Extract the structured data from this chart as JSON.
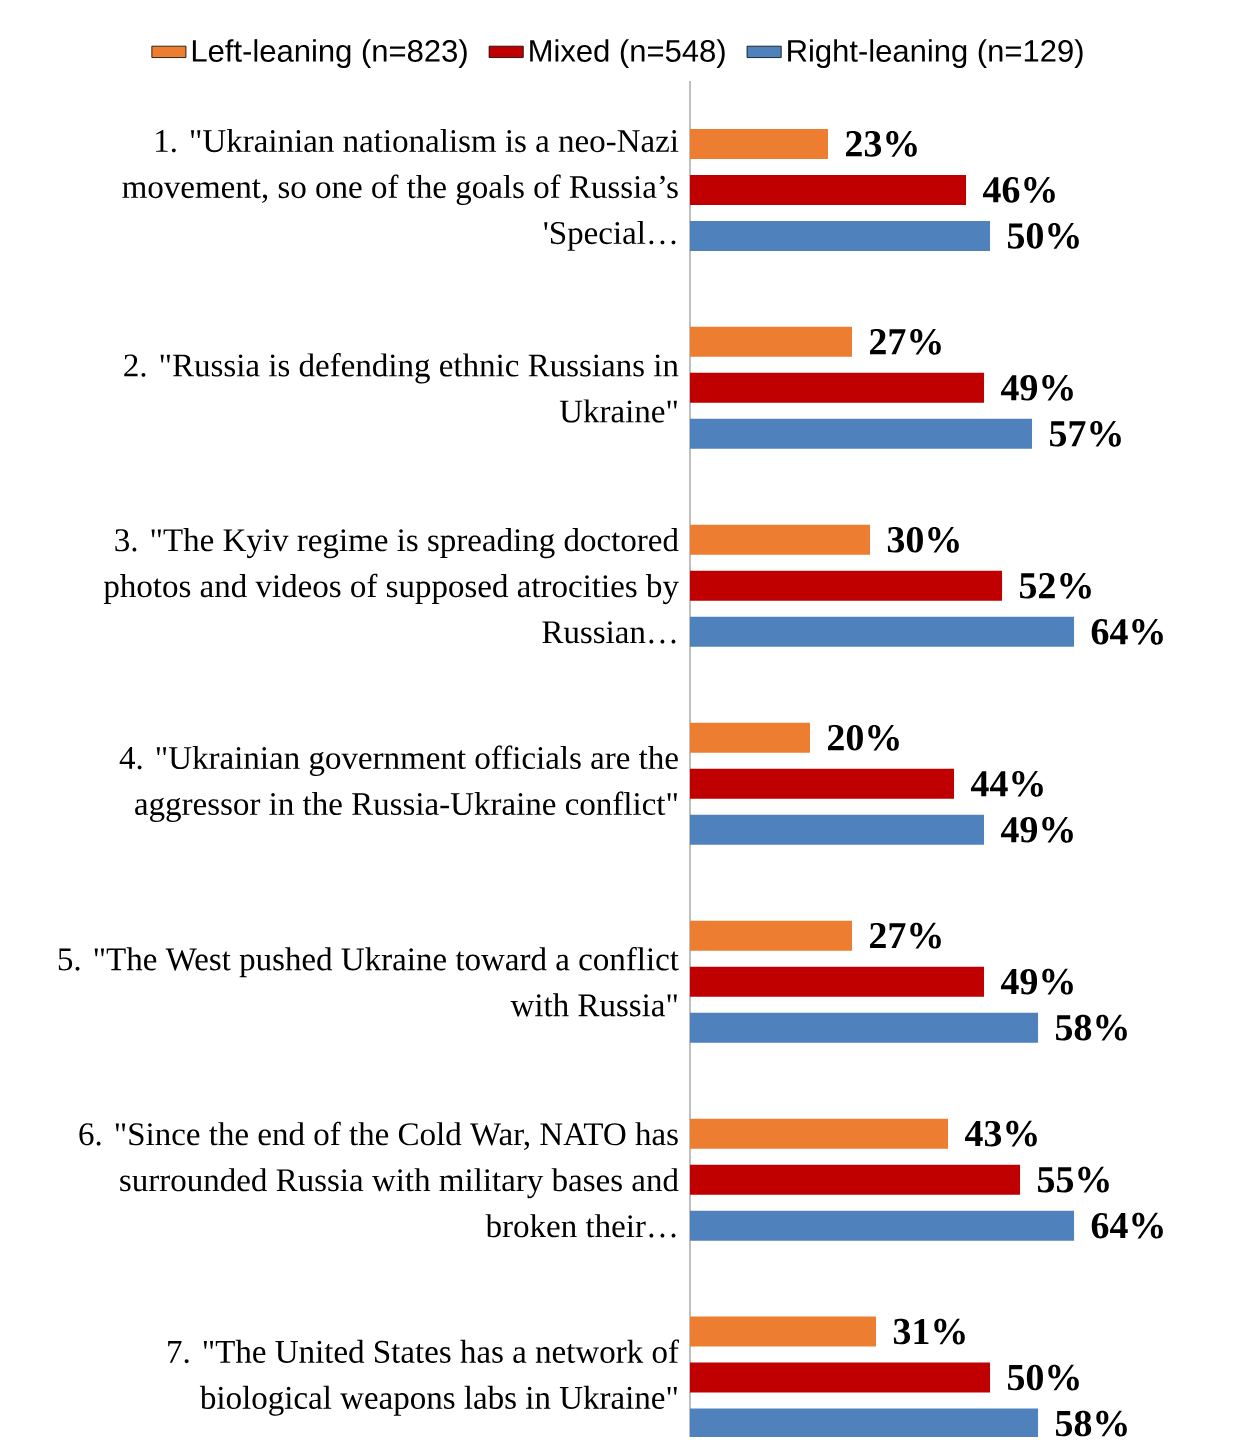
{
  "chart_data": {
    "type": "bar",
    "orientation": "horizontal",
    "legend": "top",
    "categories": [
      "1. \"Ukrainian nationalism is a neo-Nazi movement, so one of the goals of Russia’s 'Special…",
      "2. \"Russia is defending ethnic Russians in Ukraine\"",
      "3. \"The Kyiv regime is spreading doctored photos and videos of supposed atrocities by Russian…",
      "4. \"Ukrainian government officials are the aggressor in the Russia-Ukraine conflict\"",
      "5. \"The West pushed Ukraine toward a conflict with Russia\"",
      "6. \"Since the end of the Cold War, NATO has surrounded Russia with military bases and broken their…",
      "7. \"The United States has a network of biological weapons labs in Ukraine\""
    ],
    "series": [
      {
        "name": "Left-leaning (n=823)",
        "color": "#ED7D31",
        "values": [
          23,
          27,
          30,
          20,
          27,
          43,
          31
        ],
        "value_labels": [
          "23%",
          "27%",
          "30%",
          "20%",
          "27%",
          "43%",
          "31%"
        ]
      },
      {
        "name": "Mixed (n=548)",
        "color": "#C00000",
        "values": [
          46,
          49,
          52,
          44,
          49,
          55,
          50
        ],
        "value_labels": [
          "46%",
          "49%",
          "52%",
          "44%",
          "49%",
          "55%",
          "50%"
        ]
      },
      {
        "name": "Right-leaning (n=129)",
        "color": "#4F81BD",
        "values": [
          50,
          57,
          64,
          49,
          58,
          64,
          58
        ],
        "value_labels": [
          "50%",
          "57%",
          "64%",
          "49%",
          "58%",
          "64%",
          "58%"
        ]
      }
    ]
  }
}
